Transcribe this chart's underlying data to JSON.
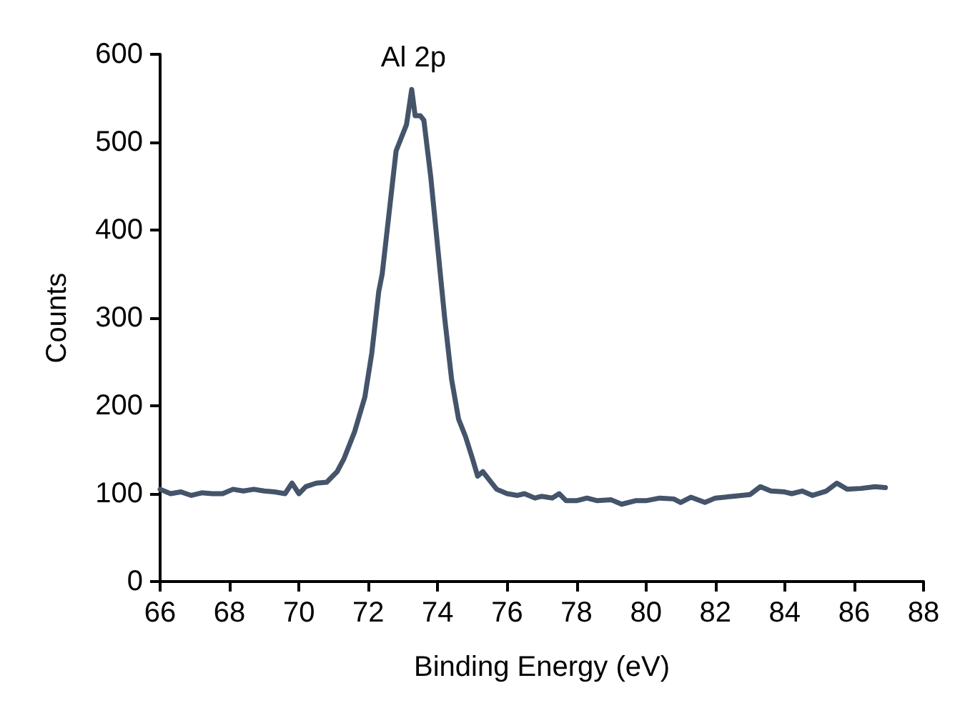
{
  "chart_data": {
    "type": "line",
    "xlabel": "Binding Energy (eV)",
    "ylabel": "Counts",
    "x": [
      66.0,
      66.3,
      66.6,
      66.9,
      67.2,
      67.5,
      67.8,
      68.1,
      68.4,
      68.7,
      69.0,
      69.3,
      69.6,
      69.8,
      70.0,
      70.2,
      70.5,
      70.8,
      71.1,
      71.3,
      71.6,
      71.9,
      72.1,
      72.3,
      72.4,
      72.6,
      72.8,
      73.0,
      73.1,
      73.25,
      73.35,
      73.5,
      73.6,
      73.8,
      74.0,
      74.2,
      74.4,
      74.6,
      74.8,
      75.0,
      75.15,
      75.3,
      75.5,
      75.7,
      76.0,
      76.3,
      76.5,
      76.8,
      77.0,
      77.3,
      77.5,
      77.7,
      78.0,
      78.3,
      78.6,
      79.0,
      79.3,
      79.7,
      80.0,
      80.4,
      80.8,
      81.0,
      81.3,
      81.7,
      82.0,
      82.5,
      83.0,
      83.3,
      83.6,
      84.0,
      84.2,
      84.5,
      84.8,
      85.2,
      85.5,
      85.8,
      86.2,
      86.6,
      86.9
    ],
    "series": [
      {
        "color": "#44546a",
        "values": [
          105,
          100,
          102,
          98,
          101,
          100,
          100,
          105,
          103,
          105,
          103,
          102,
          100,
          112,
          100,
          108,
          112,
          113,
          125,
          140,
          170,
          210,
          260,
          330,
          350,
          420,
          490,
          510,
          520,
          560,
          530,
          530,
          525,
          460,
          380,
          300,
          230,
          185,
          165,
          140,
          120,
          125,
          115,
          105,
          100,
          98,
          100,
          95,
          97,
          95,
          100,
          92,
          92,
          95,
          92,
          93,
          88,
          92,
          92,
          95,
          94,
          90,
          96,
          90,
          95,
          97,
          99,
          108,
          103,
          102,
          100,
          103,
          98,
          103,
          112,
          105,
          106,
          108,
          107
        ]
      }
    ],
    "annotations": [
      {
        "text": "Al 2p",
        "x": 73.3,
        "y": 560
      }
    ],
    "xlim": [
      66,
      88
    ],
    "xticks": [
      66,
      68,
      70,
      72,
      74,
      76,
      78,
      80,
      82,
      84,
      86,
      88
    ],
    "ylim": [
      0,
      600
    ],
    "yticks": [
      0,
      100,
      200,
      300,
      400,
      500,
      600
    ],
    "grid": false,
    "marker": "none",
    "line_style": "solid"
  }
}
